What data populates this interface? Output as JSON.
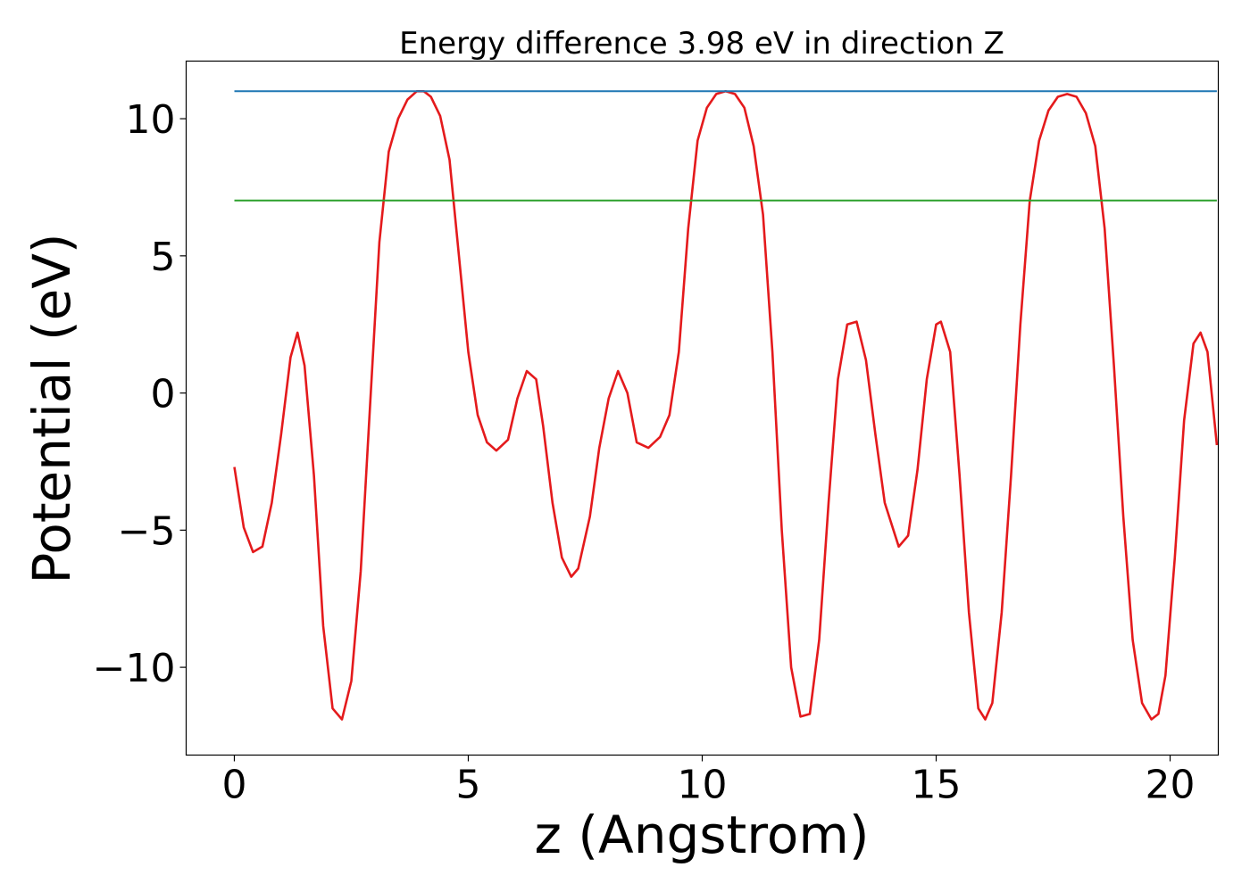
{
  "chart_data": {
    "type": "line",
    "title": "Energy difference 3.98 eV in direction Z",
    "xlabel": "z (Angstrom)",
    "ylabel": "Potential (eV)",
    "xlim": [
      -1.03,
      21.03
    ],
    "ylim": [
      -13.2,
      12.1
    ],
    "xticks": [
      0,
      5,
      10,
      15,
      20
    ],
    "xtick_labels": [
      "0",
      "5",
      "10",
      "15",
      "20"
    ],
    "yticks": [
      -10,
      -5,
      0,
      5,
      10
    ],
    "ytick_labels": [
      "−10",
      "−5",
      "0",
      "5",
      "10"
    ],
    "grid": false,
    "legend": "none",
    "series": [
      {
        "color": "#e41a1c",
        "style": "line",
        "x": [
          0,
          0.2,
          0.4,
          0.6,
          0.8,
          1.0,
          1.2,
          1.35,
          1.5,
          1.7,
          1.9,
          2.1,
          2.3,
          2.5,
          2.7,
          2.9,
          3.1,
          3.3,
          3.5,
          3.7,
          3.9,
          4.05,
          4.2,
          4.4,
          4.6,
          4.8,
          5.0,
          5.2,
          5.4,
          5.6,
          5.85,
          6.05,
          6.25,
          6.45,
          6.6,
          6.8,
          7.0,
          7.2,
          7.35,
          7.6,
          7.8,
          8.0,
          8.2,
          8.4,
          8.6,
          8.85,
          9.1,
          9.3,
          9.5,
          9.7,
          9.9,
          10.1,
          10.3,
          10.5,
          10.7,
          10.9,
          11.1,
          11.3,
          11.5,
          11.7,
          11.9,
          12.1,
          12.3,
          12.5,
          12.7,
          12.9,
          13.1,
          13.3,
          13.5,
          13.7,
          13.9,
          14.2,
          14.4,
          14.6,
          14.8,
          15.0,
          15.1,
          15.3,
          15.5,
          15.7,
          15.9,
          16.05,
          16.2,
          16.4,
          16.6,
          16.8,
          17.0,
          17.2,
          17.4,
          17.6,
          17.8,
          18.0,
          18.2,
          18.4,
          18.6,
          18.8,
          19.0,
          19.2,
          19.4,
          19.6,
          19.75,
          19.9,
          20.1,
          20.3,
          20.5,
          20.65,
          20.8,
          21.0
        ],
        "values": [
          -2.7,
          -4.9,
          -5.8,
          -5.6,
          -4.0,
          -1.5,
          1.3,
          2.2,
          1.0,
          -3.0,
          -8.5,
          -11.5,
          -11.9,
          -10.5,
          -6.5,
          -0.5,
          5.5,
          8.8,
          10.0,
          10.7,
          11.0,
          11.0,
          10.8,
          10.1,
          8.5,
          5.0,
          1.5,
          -0.8,
          -1.8,
          -2.1,
          -1.7,
          -0.2,
          0.8,
          0.5,
          -1.2,
          -4.0,
          -6.0,
          -6.7,
          -6.4,
          -4.5,
          -2.0,
          -0.2,
          0.8,
          0.0,
          -1.8,
          -2.0,
          -1.6,
          -0.8,
          1.5,
          6.0,
          9.2,
          10.4,
          10.9,
          11.0,
          10.9,
          10.4,
          9.0,
          6.5,
          1.5,
          -5.0,
          -10.0,
          -11.8,
          -11.7,
          -9.0,
          -4.0,
          0.5,
          2.5,
          2.6,
          1.2,
          -1.5,
          -4.0,
          -5.6,
          -5.2,
          -2.8,
          0.5,
          2.5,
          2.6,
          1.5,
          -3.0,
          -8.0,
          -11.5,
          -11.9,
          -11.3,
          -8.0,
          -3.0,
          2.5,
          7.0,
          9.2,
          10.3,
          10.8,
          10.9,
          10.8,
          10.2,
          9.0,
          6.0,
          1.0,
          -4.5,
          -9.0,
          -11.3,
          -11.9,
          -11.7,
          -10.3,
          -6.0,
          -1.0,
          1.8,
          2.2,
          1.5,
          -1.9
        ]
      },
      {
        "color": "#1f77b4",
        "style": "line",
        "x": [
          0,
          21.0
        ],
        "values": [
          11.0,
          11.0
        ]
      },
      {
        "color": "#2ca02c",
        "style": "line",
        "x": [
          0,
          21.0
        ],
        "values": [
          7.02,
          7.02
        ]
      }
    ]
  }
}
